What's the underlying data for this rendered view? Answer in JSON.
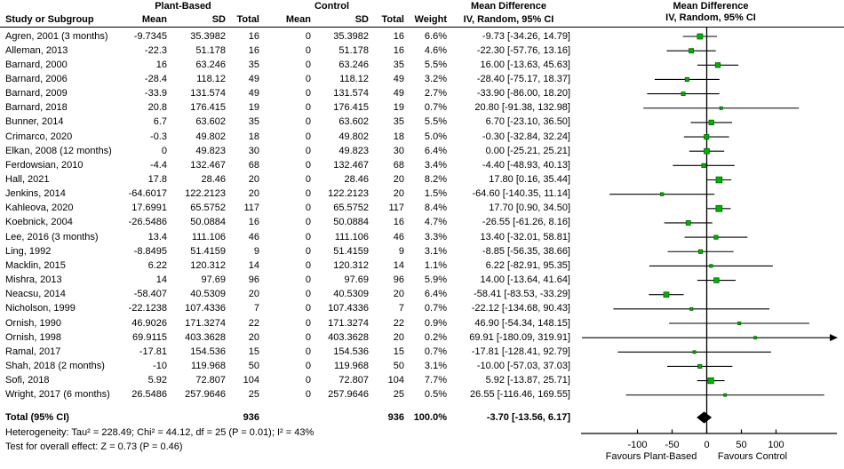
{
  "title_headers": {
    "group1": "Plant-Based",
    "group2": "Control",
    "study": "Study or Subgroup",
    "mean": "Mean",
    "sd": "SD",
    "total": "Total",
    "weight": "Weight",
    "md_col_title": "Mean Difference",
    "md_col_sub": "IV, Random, 95% CI",
    "plot_title": "Mean Difference",
    "plot_sub": "IV, Random, 95% CI"
  },
  "chart_data": {
    "type": "forest",
    "marker_color": "#00b300",
    "marker_border": "#006600",
    "x_axis": {
      "ticks": [
        -100,
        -50,
        0,
        50,
        100
      ],
      "visible_range": [
        -181,
        184
      ],
      "favours_left": "Favours Plant-Based",
      "favours_right": "Favours Control"
    },
    "studies": [
      {
        "study": "Agren, 2001 (3 months)",
        "pb_mean": "-9.7345",
        "pb_sd": "35.3982",
        "pb_total": "16",
        "c_mean": "0",
        "c_sd": "35.3982",
        "c_total": "16",
        "weight": "6.6%",
        "ci_text": "-9.73 [-34.26, 14.79]",
        "est": -9.73,
        "lo": -34.26,
        "hi": 14.79,
        "w": 6.6
      },
      {
        "study": "Alleman, 2013",
        "pb_mean": "-22.3",
        "pb_sd": "51.178",
        "pb_total": "16",
        "c_mean": "0",
        "c_sd": "51.178",
        "c_total": "16",
        "weight": "4.6%",
        "ci_text": "-22.30 [-57.76, 13.16]",
        "est": -22.3,
        "lo": -57.76,
        "hi": 13.16,
        "w": 4.6
      },
      {
        "study": "Barnard, 2000",
        "pb_mean": "16",
        "pb_sd": "63.246",
        "pb_total": "35",
        "c_mean": "0",
        "c_sd": "63.246",
        "c_total": "35",
        "weight": "5.5%",
        "ci_text": "16.00 [-13.63, 45.63]",
        "est": 16.0,
        "lo": -13.63,
        "hi": 45.63,
        "w": 5.5
      },
      {
        "study": "Barnard, 2006",
        "pb_mean": "-28.4",
        "pb_sd": "118.12",
        "pb_total": "49",
        "c_mean": "0",
        "c_sd": "118.12",
        "c_total": "49",
        "weight": "3.2%",
        "ci_text": "-28.40 [-75.17, 18.37]",
        "est": -28.4,
        "lo": -75.17,
        "hi": 18.37,
        "w": 3.2
      },
      {
        "study": "Barnard, 2009",
        "pb_mean": "-33.9",
        "pb_sd": "131.574",
        "pb_total": "49",
        "c_mean": "0",
        "c_sd": "131.574",
        "c_total": "49",
        "weight": "2.7%",
        "ci_text": "-33.90 [-86.00, 18.20]",
        "est": -33.9,
        "lo": -86.0,
        "hi": 18.2,
        "w": 2.7
      },
      {
        "study": "Barnard, 2018",
        "pb_mean": "20.8",
        "pb_sd": "176.415",
        "pb_total": "19",
        "c_mean": "0",
        "c_sd": "176.415",
        "c_total": "19",
        "weight": "0.7%",
        "ci_text": "20.80 [-91.38, 132.98]",
        "est": 20.8,
        "lo": -91.38,
        "hi": 132.98,
        "w": 0.7
      },
      {
        "study": "Bunner, 2014",
        "pb_mean": "6.7",
        "pb_sd": "63.602",
        "pb_total": "35",
        "c_mean": "0",
        "c_sd": "63.602",
        "c_total": "35",
        "weight": "5.5%",
        "ci_text": "6.70 [-23.10, 36.50]",
        "est": 6.7,
        "lo": -23.1,
        "hi": 36.5,
        "w": 5.5
      },
      {
        "study": "Crimarco, 2020",
        "pb_mean": "-0.3",
        "pb_sd": "49.802",
        "pb_total": "18",
        "c_mean": "0",
        "c_sd": "49.802",
        "c_total": "18",
        "weight": "5.0%",
        "ci_text": "-0.30 [-32.84, 32.24]",
        "est": -0.3,
        "lo": -32.84,
        "hi": 32.24,
        "w": 5.0
      },
      {
        "study": "Elkan, 2008 (12 months)",
        "pb_mean": "0",
        "pb_sd": "49.823",
        "pb_total": "30",
        "c_mean": "0",
        "c_sd": "49.823",
        "c_total": "30",
        "weight": "6.4%",
        "ci_text": "0.00 [-25.21, 25.21]",
        "est": 0.0,
        "lo": -25.21,
        "hi": 25.21,
        "w": 6.4
      },
      {
        "study": "Ferdowsian, 2010",
        "pb_mean": "-4.4",
        "pb_sd": "132.467",
        "pb_total": "68",
        "c_mean": "0",
        "c_sd": "132.467",
        "c_total": "68",
        "weight": "3.4%",
        "ci_text": "-4.40 [-48.93, 40.13]",
        "est": -4.4,
        "lo": -48.93,
        "hi": 40.13,
        "w": 3.4
      },
      {
        "study": "Hall, 2021",
        "pb_mean": "17.8",
        "pb_sd": "28.46",
        "pb_total": "20",
        "c_mean": "0",
        "c_sd": "28.46",
        "c_total": "20",
        "weight": "8.2%",
        "ci_text": "17.80 [0.16, 35.44]",
        "est": 17.8,
        "lo": 0.16,
        "hi": 35.44,
        "w": 8.2
      },
      {
        "study": "Jenkins, 2014",
        "pb_mean": "-64.6017",
        "pb_sd": "122.2123",
        "pb_total": "20",
        "c_mean": "0",
        "c_sd": "122.2123",
        "c_total": "20",
        "weight": "1.5%",
        "ci_text": "-64.60 [-140.35, 11.14]",
        "est": -64.6,
        "lo": -140.35,
        "hi": 11.14,
        "w": 1.5
      },
      {
        "study": "Kahleova, 2020",
        "pb_mean": "17.6991",
        "pb_sd": "65.5752",
        "pb_total": "117",
        "c_mean": "0",
        "c_sd": "65.5752",
        "c_total": "117",
        "weight": "8.4%",
        "ci_text": "17.70 [0.90, 34.50]",
        "est": 17.7,
        "lo": 0.9,
        "hi": 34.5,
        "w": 8.4
      },
      {
        "study": "Koebnick, 2004",
        "pb_mean": "-26.5486",
        "pb_sd": "50.0884",
        "pb_total": "16",
        "c_mean": "0",
        "c_sd": "50.0884",
        "c_total": "16",
        "weight": "4.7%",
        "ci_text": "-26.55 [-61.26, 8.16]",
        "est": -26.55,
        "lo": -61.26,
        "hi": 8.16,
        "w": 4.7
      },
      {
        "study": "Lee, 2016 (3 months)",
        "pb_mean": "13.4",
        "pb_sd": "111.106",
        "pb_total": "46",
        "c_mean": "0",
        "c_sd": "111.106",
        "c_total": "46",
        "weight": "3.3%",
        "ci_text": "13.40 [-32.01, 58.81]",
        "est": 13.4,
        "lo": -32.01,
        "hi": 58.81,
        "w": 3.3
      },
      {
        "study": "Ling, 1992",
        "pb_mean": "-8.8495",
        "pb_sd": "51.4159",
        "pb_total": "9",
        "c_mean": "0",
        "c_sd": "51.4159",
        "c_total": "9",
        "weight": "3.1%",
        "ci_text": "-8.85 [-56.35, 38.66]",
        "est": -8.85,
        "lo": -56.35,
        "hi": 38.66,
        "w": 3.1
      },
      {
        "study": "Macklin, 2015",
        "pb_mean": "6.22",
        "pb_sd": "120.312",
        "pb_total": "14",
        "c_mean": "0",
        "c_sd": "120.312",
        "c_total": "14",
        "weight": "1.1%",
        "ci_text": "6.22 [-82.91, 95.35]",
        "est": 6.22,
        "lo": -82.91,
        "hi": 95.35,
        "w": 1.1
      },
      {
        "study": "Mishra, 2013",
        "pb_mean": "14",
        "pb_sd": "97.69",
        "pb_total": "96",
        "c_mean": "0",
        "c_sd": "97.69",
        "c_total": "96",
        "weight": "5.9%",
        "ci_text": "14.00 [-13.64, 41.64]",
        "est": 14.0,
        "lo": -13.64,
        "hi": 41.64,
        "w": 5.9
      },
      {
        "study": "Neacsu, 2014",
        "pb_mean": "-58.407",
        "pb_sd": "40.5309",
        "pb_total": "20",
        "c_mean": "0",
        "c_sd": "40.5309",
        "c_total": "20",
        "weight": "6.4%",
        "ci_text": "-58.41 [-83.53, -33.29]",
        "est": -58.41,
        "lo": -83.53,
        "hi": -33.29,
        "w": 6.4
      },
      {
        "study": "Nicholson, 1999",
        "pb_mean": "-22.1238",
        "pb_sd": "107.4336",
        "pb_total": "7",
        "c_mean": "0",
        "c_sd": "107.4336",
        "c_total": "7",
        "weight": "0.7%",
        "ci_text": "-22.12 [-134.68, 90.43]",
        "est": -22.12,
        "lo": -134.68,
        "hi": 90.43,
        "w": 0.7
      },
      {
        "study": "Ornish, 1990",
        "pb_mean": "46.9026",
        "pb_sd": "171.3274",
        "pb_total": "22",
        "c_mean": "0",
        "c_sd": "171.3274",
        "c_total": "22",
        "weight": "0.9%",
        "ci_text": "46.90 [-54.34, 148.15]",
        "est": 46.9,
        "lo": -54.34,
        "hi": 148.15,
        "w": 0.9
      },
      {
        "study": "Ornish, 1998",
        "pb_mean": "69.9115",
        "pb_sd": "403.3628",
        "pb_total": "20",
        "c_mean": "0",
        "c_sd": "403.3628",
        "c_total": "20",
        "weight": "0.2%",
        "ci_text": "69.91 [-180.09, 319.91]",
        "est": 69.91,
        "lo": -180.09,
        "hi": 319.91,
        "w": 0.2
      },
      {
        "study": "Ramal, 2017",
        "pb_mean": "-17.81",
        "pb_sd": "154.536",
        "pb_total": "15",
        "c_mean": "0",
        "c_sd": "154.536",
        "c_total": "15",
        "weight": "0.7%",
        "ci_text": "-17.81 [-128.41, 92.79]",
        "est": -17.81,
        "lo": -128.41,
        "hi": 92.79,
        "w": 0.7
      },
      {
        "study": "Shah, 2018 (2 months)",
        "pb_mean": "-10",
        "pb_sd": "119.968",
        "pb_total": "50",
        "c_mean": "0",
        "c_sd": "119.968",
        "c_total": "50",
        "weight": "3.1%",
        "ci_text": "-10.00 [-57.03, 37.03]",
        "est": -10.0,
        "lo": -57.03,
        "hi": 37.03,
        "w": 3.1
      },
      {
        "study": "Sofi, 2018",
        "pb_mean": "5.92",
        "pb_sd": "72.807",
        "pb_total": "104",
        "c_mean": "0",
        "c_sd": "72.807",
        "c_total": "104",
        "weight": "7.7%",
        "ci_text": "5.92 [-13.87, 25.71]",
        "est": 5.92,
        "lo": -13.87,
        "hi": 25.71,
        "w": 7.7
      },
      {
        "study": "Wright, 2017 (6 months)",
        "pb_mean": "26.5486",
        "pb_sd": "257.9646",
        "pb_total": "25",
        "c_mean": "0",
        "c_sd": "257.9646",
        "c_total": "25",
        "weight": "0.5%",
        "ci_text": "26.55 [-116.46, 169.55]",
        "est": 26.55,
        "lo": -116.46,
        "hi": 169.55,
        "w": 0.5
      }
    ],
    "total": {
      "label": "Total (95% CI)",
      "pb_total": "936",
      "c_total": "936",
      "weight": "100.0%",
      "ci_text": "-3.70 [-13.56, 6.17]",
      "est": -3.7,
      "lo": -13.56,
      "hi": 6.17
    },
    "heterogeneity": "Heterogeneity: Tau² = 228.49; Chi² = 44.12, df = 25 (P = 0.01); I² = 43%",
    "overall_effect": "Test for overall effect: Z = 0.73 (P = 0.46)"
  }
}
